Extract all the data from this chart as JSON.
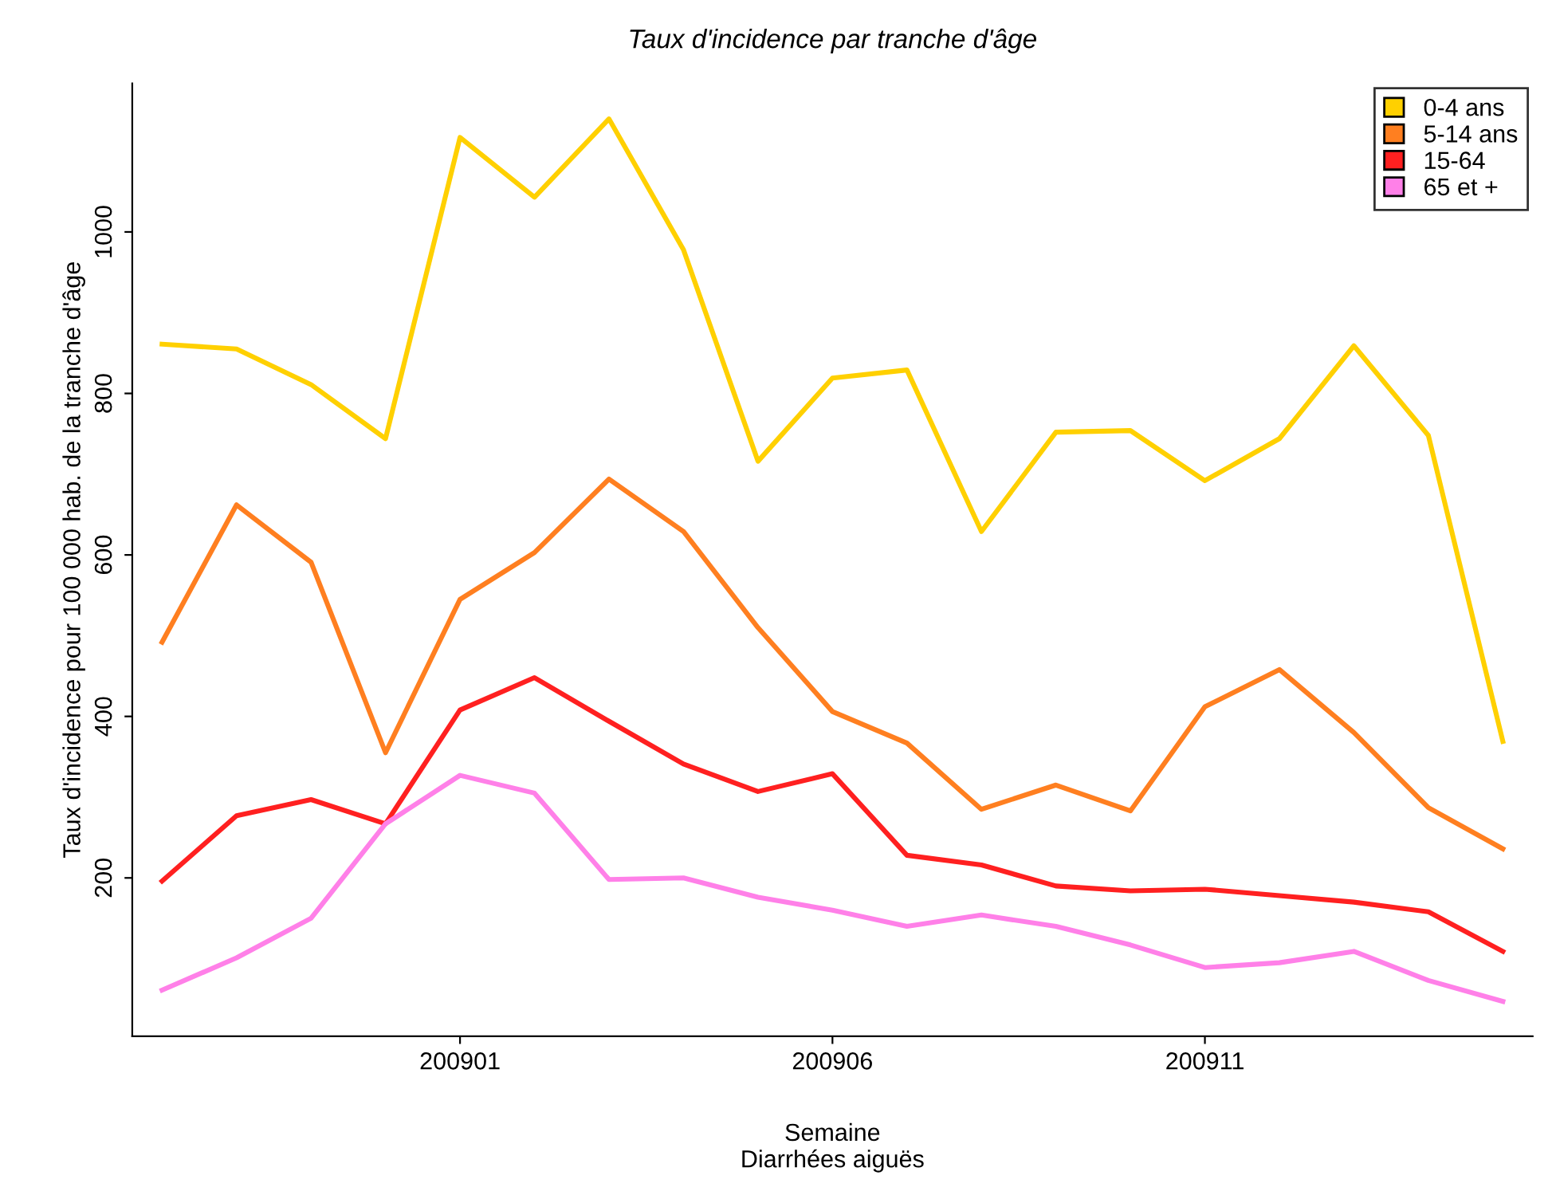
{
  "chart_data": {
    "type": "line",
    "title": "Taux d'incidence par tranche d'âge",
    "xlabel": "Semaine\nDiarrhées aiguës",
    "ylabel": "Taux d'incidence pour 100 000 hab. de la tranche d'âge",
    "categories": [
      null,
      null,
      null,
      null,
      "200901",
      null,
      null,
      null,
      null,
      "200906",
      null,
      null,
      null,
      null,
      "200911",
      null,
      null,
      null,
      null
    ],
    "series": [
      {
        "name": "0-4 ans",
        "color": "#ffd000",
        "values": [
          861,
          855,
          811,
          744,
          1117,
          1043,
          1140,
          978,
          716,
          819,
          829,
          629,
          752,
          754,
          692,
          744,
          859,
          748,
          369
        ]
      },
      {
        "name": "5-14 ans",
        "color": "#ff7f20",
        "values": [
          492,
          662,
          591,
          355,
          545,
          603,
          694,
          629,
          510,
          406,
          367,
          285,
          315,
          283,
          412,
          458,
          380,
          287,
          236
        ]
      },
      {
        "name": "15-64",
        "color": "#ff2020",
        "values": [
          196,
          277,
          297,
          267,
          408,
          448,
          394,
          341,
          307,
          329,
          228,
          216,
          190,
          184,
          186,
          178,
          170,
          158,
          109
        ]
      },
      {
        "name": "65 et +",
        "color": "#ff80e8",
        "values": [
          61,
          101,
          150,
          267,
          327,
          305,
          198,
          200,
          176,
          160,
          140,
          154,
          140,
          117,
          89,
          95,
          109,
          73,
          47
        ]
      }
    ],
    "ylim": [
      4,
      1184
    ],
    "yticks": [
      200,
      400,
      600,
      800,
      1000
    ],
    "grid": false,
    "legend": "top right",
    "marker": "none",
    "line_style": "solid"
  }
}
